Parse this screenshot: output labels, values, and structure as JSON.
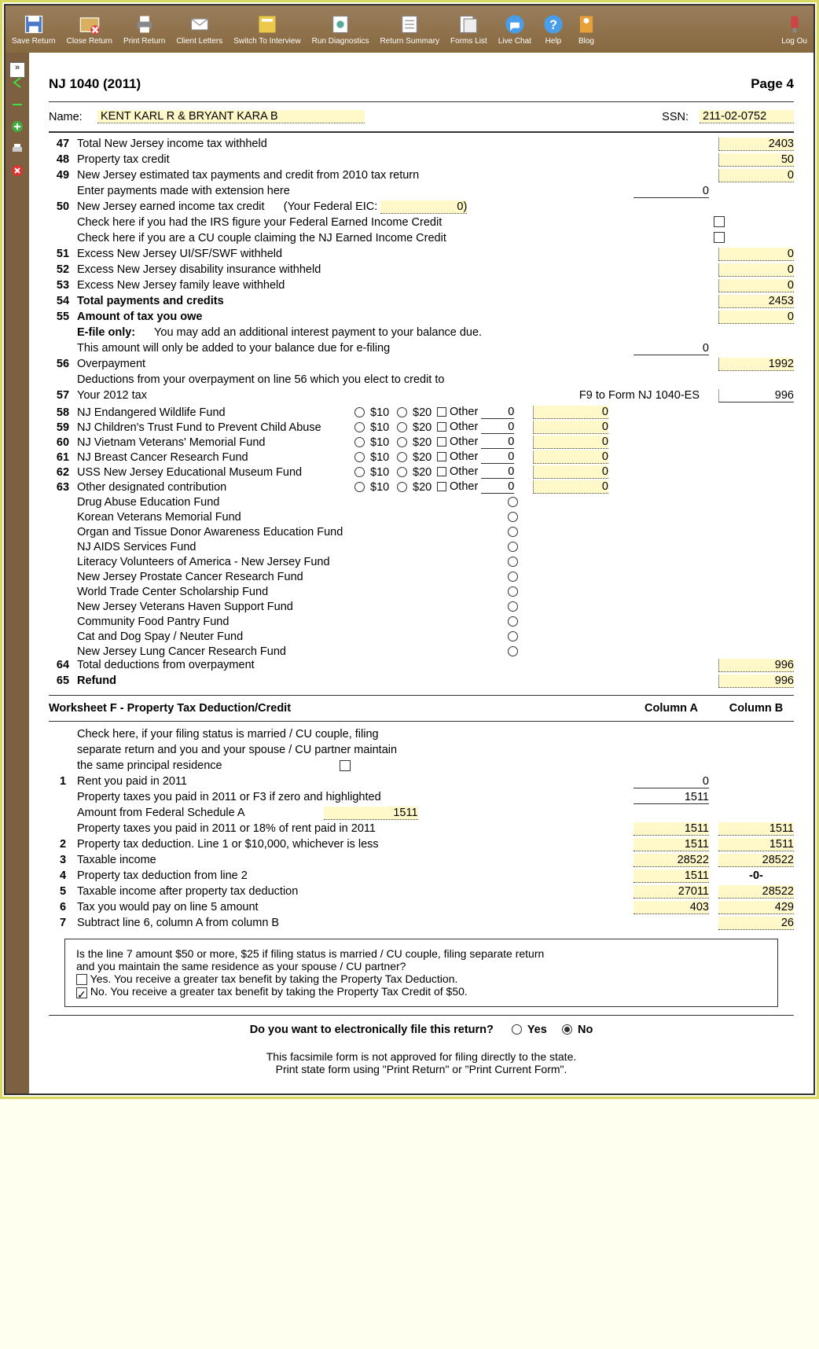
{
  "toolbar": {
    "save": "Save Return",
    "close": "Close Return",
    "print": "Print Return",
    "client": "Client Letters",
    "switch": "Switch To Interview",
    "diag": "Run Diagnostics",
    "summary": "Return Summary",
    "forms": "Forms List",
    "chat": "Live Chat",
    "help": "Help",
    "blog": "Blog",
    "logout": "Log Ou"
  },
  "header": {
    "title": "NJ 1040 (2011)",
    "page": "Page 4"
  },
  "name": {
    "label": "Name:",
    "value": "KENT KARL R & BRYANT KARA B",
    "ssn_label": "SSN:",
    "ssn": "211-02-0752"
  },
  "lines": {
    "l47": {
      "num": "47",
      "text": "Total New Jersey income tax withheld",
      "val": "2403"
    },
    "l48": {
      "num": "48",
      "text": "Property tax credit",
      "val": "50"
    },
    "l49": {
      "num": "49",
      "text": "New Jersey estimated tax payments and credit from 2010 tax return",
      "val": "0"
    },
    "l49b": {
      "text": "Enter payments made with extension here",
      "val": "0"
    },
    "l50": {
      "num": "50",
      "text": "New Jersey earned income tax credit",
      "extra": "(Your Federal EIC:",
      "eic": "0)"
    },
    "l50a": {
      "text": "Check here if you had the IRS figure your Federal Earned Income Credit"
    },
    "l50b": {
      "text": "Check here if you are a CU couple claiming the NJ Earned Income Credit"
    },
    "l51": {
      "num": "51",
      "text": "Excess New Jersey UI/SF/SWF withheld",
      "val": "0"
    },
    "l52": {
      "num": "52",
      "text": "Excess New Jersey disability insurance withheld",
      "val": "0"
    },
    "l53": {
      "num": "53",
      "text": "Excess New Jersey family leave withheld",
      "val": "0"
    },
    "l54": {
      "num": "54",
      "text": "Total payments and credits",
      "val": "2453"
    },
    "l55": {
      "num": "55",
      "text": "Amount of tax you owe",
      "val": "0"
    },
    "l55a": {
      "text": "E-file only:",
      "extra": "You may add an additional interest payment to your balance due."
    },
    "l55b": {
      "text": "This amount will only be added to your balance due for e-filing",
      "val": "0"
    },
    "l56": {
      "num": "56",
      "text": "Overpayment",
      "val": "1992"
    },
    "l56a": {
      "text": "Deductions from your overpayment on line 56 which you elect to credit to"
    },
    "l57": {
      "num": "57",
      "text": "Your 2012 tax",
      "extra": "F9 to Form NJ 1040-ES",
      "val": "996"
    },
    "l64": {
      "num": "64",
      "text": "Total deductions from overpayment",
      "val": "996"
    },
    "l65": {
      "num": "65",
      "text": "Refund",
      "val": "996"
    }
  },
  "funds": [
    {
      "num": "58",
      "text": "NJ Endangered Wildlife Fund",
      "other": "0",
      "val": "0"
    },
    {
      "num": "59",
      "text": "NJ Children's Trust Fund to Prevent Child Abuse",
      "other": "0",
      "val": "0"
    },
    {
      "num": "60",
      "text": "NJ Vietnam Veterans' Memorial Fund",
      "other": "0",
      "val": "0"
    },
    {
      "num": "61",
      "text": "NJ Breast Cancer Research Fund",
      "other": "0",
      "val": "0"
    },
    {
      "num": "62",
      "text": "USS New Jersey Educational Museum Fund",
      "other": "0",
      "val": "0"
    },
    {
      "num": "63",
      "text": "Other designated contribution",
      "other": "0",
      "val": "0"
    }
  ],
  "fund_labels": {
    "d10": "$10",
    "d20": "$20",
    "other": "Other"
  },
  "other_funds": [
    "Drug Abuse Education Fund",
    "Korean Veterans Memorial Fund",
    "Organ and Tissue Donor Awareness Education Fund",
    "NJ AIDS Services Fund",
    "Literacy Volunteers of America - New Jersey Fund",
    "New Jersey Prostate Cancer Research Fund",
    "World Trade Center Scholarship Fund",
    "New Jersey Veterans  Haven Support Fund",
    "Community Food Pantry Fund",
    "Cat and Dog Spay / Neuter Fund",
    "New Jersey Lung Cancer Research Fund"
  ],
  "worksheet": {
    "title": "Worksheet F - Property Tax Deduction/Credit",
    "colA": "Column A",
    "colB": "Column B",
    "intro1": "Check here,  if your filing status is married / CU couple,  filing",
    "intro2": "separate return and you and your spouse / CU partner maintain",
    "intro3": "the same principal residence",
    "r1": {
      "n": "1",
      "t": "Rent you paid in 2011",
      "a": "0"
    },
    "r1b": {
      "t": "Property taxes you paid in 2011 or F3 if zero and highlighted",
      "a": "1511"
    },
    "r1c": {
      "t": "Amount from Federal Schedule A",
      "mid": "1511"
    },
    "r1d": {
      "t": "Property taxes you paid in 2011 or 18% of rent paid in 2011",
      "a": "1511",
      "b": "1511"
    },
    "r2": {
      "n": "2",
      "t": "Property tax deduction.   Line 1 or $10,000,  whichever is less",
      "a": "1511",
      "b": "1511"
    },
    "r3": {
      "n": "3",
      "t": "Taxable income",
      "a": "28522",
      "b": "28522"
    },
    "r4": {
      "n": "4",
      "t": "Property tax deduction from line 2",
      "a": "1511",
      "b": "-0-"
    },
    "r5": {
      "n": "5",
      "t": "Taxable income after property tax deduction",
      "a": "27011",
      "b": "28522"
    },
    "r6": {
      "n": "6",
      "t": "Tax you would pay on line 5 amount",
      "a": "403",
      "b": "429"
    },
    "r7": {
      "n": "7",
      "t": "Subtract line 6,  column A from column B",
      "b": "26"
    }
  },
  "question": {
    "q1": "Is the line 7 amount $50 or more,  $25 if filing status is married / CU couple,  filing separate return",
    "q2": "and you maintain the same residence as your spouse / CU partner?",
    "yes": "Yes.   You receive a greater tax benefit by taking the Property Tax Deduction.",
    "no": "No.   You receive a greater tax benefit by taking the Property Tax Credit of $50."
  },
  "efile": {
    "q": "Do you want to electronically file this return?",
    "yes": "Yes",
    "no": "No"
  },
  "footer": {
    "l1": "This facsimile form is not approved for filing directly to the state.",
    "l2": "Print state form using \"Print Return\" or \"Print Current Form\"."
  }
}
